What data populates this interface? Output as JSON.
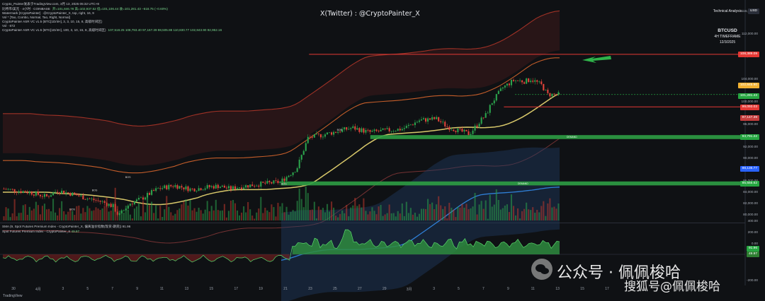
{
  "header": {
    "source": "Crypto_Painter发表于TradingView.com, 3月 13, 2025 05:32 UTC+8",
    "line1": "比特币/美元 · 4小时 · COINBASE",
    "line1_values": "开=101,846.78 高=102,937.52 低=101,106.44 收=101,281.43 −618.75 (−0.60%)",
    "line2": "Watermark [CryptoPainter] · @CryptoPainter_X, top, right, 16, 9",
    "line3": "Vol * [Tao, Combo, Normal, Tao, Right, Normal]",
    "line4": "CryptoPainter ASR VC v1.5 (BTC[1D/4H], 3, 3, 10, 15, 8, 高级时间区)",
    "line5": "Vol · 672",
    "line6": "CryptoPainter ASR VC v1.5 (BTC[1D/4H], 100, 3, 10, 15, 8, 高级时间区)",
    "line6_values": "107,518.25 108,793.40 97,167.39 98,505.88 110,830.77 102,843.90 92,952.16"
  },
  "watermark": {
    "text": "X(Twitter) : @CryptoPainter_X"
  },
  "ta_box": {
    "line1": "Technical Analysis",
    "symbol": "BTCUSD",
    "timeframe": "4H TIMEFRAME",
    "date": "12/3/2025"
  },
  "price_axis": {
    "ticks": [
      "116,000.00",
      "112,000.00",
      "108,000.00",
      "104,000.00",
      "100,000.00",
      "96,000.00",
      "92,000.00",
      "90,000.00",
      "88,000.00",
      "86,000.00",
      "84,000.00",
      "82,000.00",
      "80,000.00"
    ],
    "tags": [
      {
        "label": "USD",
        "color": "#2a2e39"
      },
      {
        "label": "108,389.09",
        "color": "#e53935"
      },
      {
        "label": "102,845.90",
        "color": "#f2b233"
      },
      {
        "label": "101,281.43",
        "color": "#26a641"
      },
      {
        "label": "99,093.03",
        "color": "#e53935"
      },
      {
        "label": "97,147.39",
        "color": "#c43c3c"
      },
      {
        "label": "93,791.22",
        "color": "#26a641"
      },
      {
        "label": "88,135.77",
        "color": "#2962ff"
      },
      {
        "label": "85,555.62",
        "color": "#26a641"
      }
    ]
  },
  "zones": {
    "upper_label": "DEMAND",
    "lower_label": "DEMAND"
  },
  "markers": [
    "BOS",
    "BOS",
    "BOS",
    "BOS",
    "BOS"
  ],
  "subpanel": {
    "title": "SMA (9, Spot Futures Premium Index - CryptoPainter_X, 偏离溢价指数(现货-期货)) 91.96",
    "subtitle": "Spot Futures Premium Index - CryptoPainter_X",
    "subtitle_value": "49.97",
    "axis": [
      "400.00",
      "200.00",
      "0.00",
      "-200.00"
    ],
    "tags": [
      {
        "label": "91.96",
        "color": "#26a641"
      },
      {
        "label": "49.97",
        "color": "#2f7d32"
      }
    ]
  },
  "x_axis": {
    "labels": [
      "30",
      "4月",
      "3",
      "5",
      "7",
      "9",
      "11",
      "13",
      "15",
      "17",
      "19",
      "21",
      "23",
      "25",
      "27",
      "29",
      "3月",
      "3",
      "5",
      "7",
      "9",
      "11",
      "13",
      "15",
      "17"
    ]
  },
  "wechat": {
    "line1": "公众号 · 佩佩梭哈",
    "line2": "搜狐号@佩佩梭哈"
  },
  "tradingview": "TradingView",
  "chart_data": {
    "type": "candlestick",
    "symbol": "BTCUSD",
    "timeframe": "4H",
    "ylim": [
      79000,
      117000
    ],
    "x_labels": [
      "30",
      "4月",
      "3",
      "5",
      "7",
      "9",
      "11",
      "13",
      "15",
      "17",
      "19",
      "21",
      "23",
      "25",
      "27",
      "29",
      "3月",
      "3",
      "5",
      "7",
      "9",
      "11",
      "13",
      "15",
      "17"
    ],
    "close_path": [
      [
        0,
        84600
      ],
      [
        0.05,
        84000
      ],
      [
        0.08,
        83200
      ],
      [
        0.1,
        84300
      ],
      [
        0.13,
        83600
      ],
      [
        0.15,
        83000
      ],
      [
        0.18,
        82300
      ],
      [
        0.2,
        81500
      ],
      [
        0.21,
        79800
      ],
      [
        0.23,
        82000
      ],
      [
        0.25,
        82800
      ],
      [
        0.28,
        84600
      ],
      [
        0.31,
        85200
      ],
      [
        0.34,
        84500
      ],
      [
        0.37,
        84900
      ],
      [
        0.39,
        85100
      ],
      [
        0.41,
        84600
      ],
      [
        0.43,
        85000
      ],
      [
        0.46,
        85400
      ],
      [
        0.5,
        85800
      ],
      [
        0.53,
        88200
      ],
      [
        0.55,
        93600
      ],
      [
        0.57,
        94000
      ],
      [
        0.6,
        94700
      ],
      [
        0.63,
        95400
      ],
      [
        0.66,
        94600
      ],
      [
        0.69,
        94900
      ],
      [
        0.72,
        95200
      ],
      [
        0.75,
        96700
      ],
      [
        0.78,
        97000
      ],
      [
        0.8,
        95600
      ],
      [
        0.82,
        94900
      ],
      [
        0.84,
        94300
      ],
      [
        0.86,
        96700
      ],
      [
        0.87,
        97700
      ],
      [
        0.88,
        99800
      ],
      [
        0.9,
        102500
      ],
      [
        0.92,
        103800
      ],
      [
        0.94,
        103600
      ],
      [
        0.95,
        104000
      ],
      [
        0.96,
        103500
      ],
      [
        0.97,
        102900
      ],
      [
        0.98,
        101281
      ]
    ],
    "levels": {
      "resistance": 108389.09,
      "open": 102845.9,
      "close": 101281.43,
      "support": 99093.03,
      "mid": 97147.39
    },
    "demand_zones": [
      [
        93400,
        94100
      ],
      [
        85200,
        85900
      ]
    ],
    "volume_max": 672
  }
}
